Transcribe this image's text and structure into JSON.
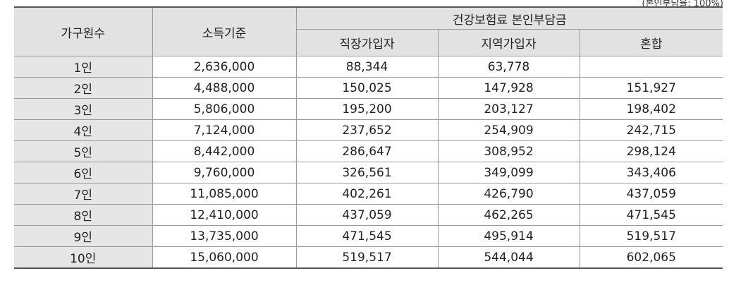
{
  "corner_note": "(본인부담율: 100%)",
  "table": {
    "headers": {
      "household": "가구원수",
      "income": "소득기준",
      "premium_group": "건강보험료 본인부담금",
      "workplace": "직장가입자",
      "regional": "지역가입자",
      "mixed": "혼합"
    },
    "rows": [
      {
        "household": "1인",
        "income": "2,636,000",
        "workplace": "88,344",
        "regional": "63,778",
        "mixed": ""
      },
      {
        "household": "2인",
        "income": "4,488,000",
        "workplace": "150,025",
        "regional": "147,928",
        "mixed": "151,927"
      },
      {
        "household": "3인",
        "income": "5,806,000",
        "workplace": "195,200",
        "regional": "203,127",
        "mixed": "198,402"
      },
      {
        "household": "4인",
        "income": "7,124,000",
        "workplace": "237,652",
        "regional": "254,909",
        "mixed": "242,715"
      },
      {
        "household": "5인",
        "income": "8,442,000",
        "workplace": "286,647",
        "regional": "308,952",
        "mixed": "298,124"
      },
      {
        "household": "6인",
        "income": "9,760,000",
        "workplace": "326,561",
        "regional": "349,099",
        "mixed": "343,406"
      },
      {
        "household": "7인",
        "income": "11,085,000",
        "workplace": "402,261",
        "regional": "426,790",
        "mixed": "437,059"
      },
      {
        "household": "8인",
        "income": "12,410,000",
        "workplace": "437,059",
        "regional": "462,265",
        "mixed": "471,545"
      },
      {
        "household": "9인",
        "income": "13,735,000",
        "workplace": "471,545",
        "regional": "495,914",
        "mixed": "519,517"
      },
      {
        "household": "10인",
        "income": "15,060,000",
        "workplace": "519,517",
        "regional": "544,044",
        "mixed": "602,065"
      }
    ]
  }
}
